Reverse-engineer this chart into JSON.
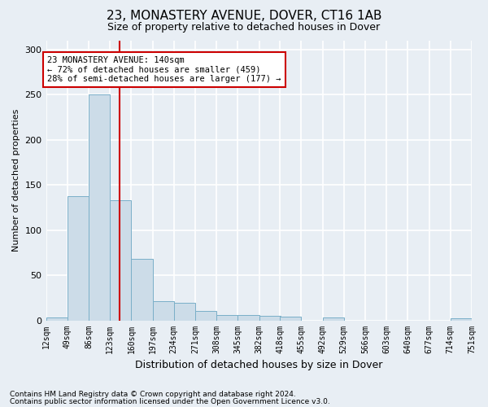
{
  "title1": "23, MONASTERY AVENUE, DOVER, CT16 1AB",
  "title2": "Size of property relative to detached houses in Dover",
  "xlabel": "Distribution of detached houses by size in Dover",
  "ylabel": "Number of detached properties",
  "footer1": "Contains HM Land Registry data © Crown copyright and database right 2024.",
  "footer2": "Contains public sector information licensed under the Open Government Licence v3.0.",
  "bin_edges": [
    12,
    49,
    86,
    123,
    160,
    197,
    234,
    271,
    308,
    345,
    382,
    418,
    455,
    492,
    529,
    566,
    603,
    640,
    677,
    714,
    751
  ],
  "bar_heights": [
    3,
    138,
    250,
    133,
    68,
    21,
    19,
    10,
    6,
    6,
    5,
    4,
    0,
    3,
    0,
    0,
    0,
    0,
    0,
    2
  ],
  "bar_color": "#ccdce8",
  "bar_edgecolor": "#7aafc8",
  "red_line_x": 140,
  "annotation_text": "23 MONASTERY AVENUE: 140sqm\n← 72% of detached houses are smaller (459)\n28% of semi-detached houses are larger (177) →",
  "annotation_box_color": "#ffffff",
  "annotation_box_edgecolor": "#cc0000",
  "ylim": [
    0,
    310
  ],
  "yticks": [
    0,
    50,
    100,
    150,
    200,
    250,
    300
  ],
  "background_color": "#e8eef4",
  "grid_color": "#ffffff",
  "title1_fontsize": 11,
  "title2_fontsize": 9,
  "ylabel_fontsize": 8,
  "xlabel_fontsize": 9,
  "tick_fontsize": 7,
  "footer_fontsize": 6.5
}
